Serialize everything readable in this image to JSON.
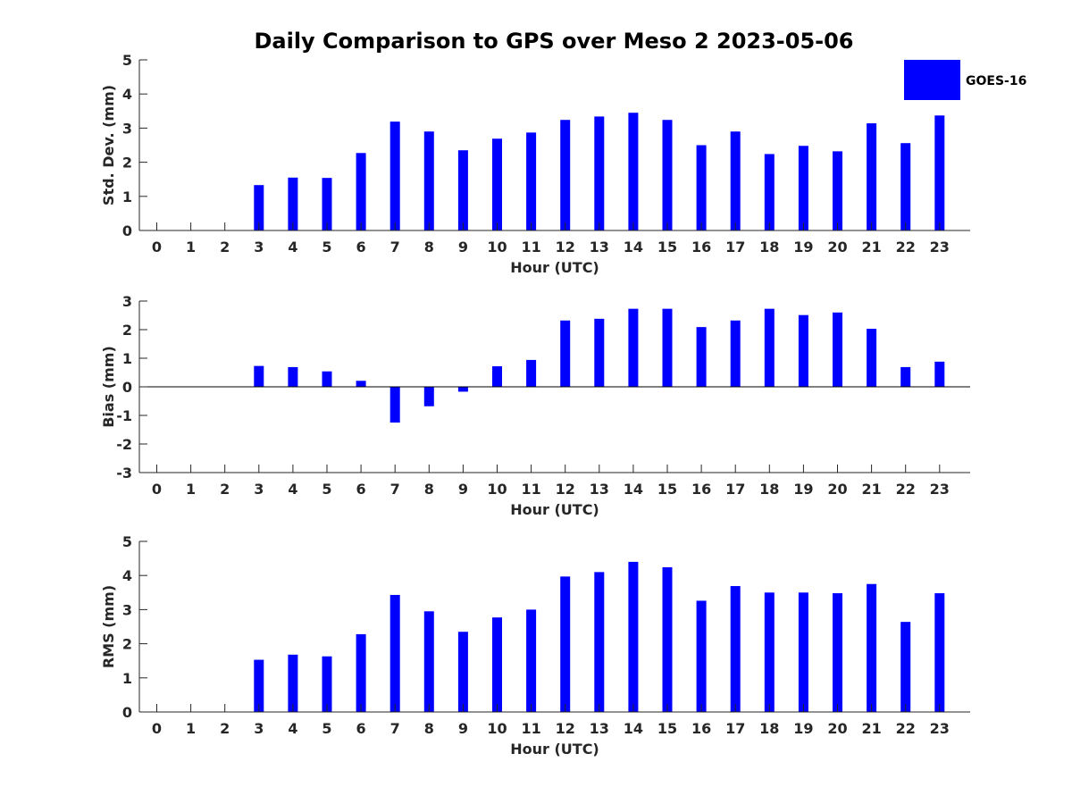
{
  "title": "Daily Comparison to GPS over Meso 2 2023-05-06",
  "bar_color": "#0000ff",
  "legend": {
    "label": "GOES-16",
    "placement": "top-right"
  },
  "chart_data": [
    {
      "type": "bar",
      "title": "Daily Comparison to GPS over Meso 2 2023-05-06",
      "xlabel": "Hour (UTC)",
      "ylabel": "Std. Dev. (mm)",
      "ylim": [
        0,
        5
      ],
      "yticks": [
        0,
        1,
        2,
        3,
        4,
        5
      ],
      "categories": [
        "0",
        "1",
        "2",
        "3",
        "4",
        "5",
        "6",
        "7",
        "8",
        "9",
        "10",
        "11",
        "12",
        "13",
        "14",
        "15",
        "16",
        "17",
        "18",
        "19",
        "20",
        "21",
        "22",
        "23"
      ],
      "series": [
        {
          "name": "GOES-16",
          "values": [
            null,
            null,
            null,
            1.33,
            1.55,
            1.54,
            2.27,
            3.19,
            2.9,
            2.35,
            2.69,
            2.87,
            3.24,
            3.34,
            3.45,
            3.24,
            2.5,
            2.9,
            2.24,
            2.48,
            2.32,
            3.14,
            2.56,
            3.37
          ]
        }
      ]
    },
    {
      "type": "bar",
      "xlabel": "Hour (UTC)",
      "ylabel": "Bias (mm)",
      "ylim": [
        -3,
        3
      ],
      "yticks": [
        -3,
        -2,
        -1,
        0,
        1,
        2,
        3
      ],
      "zero_line": true,
      "categories": [
        "0",
        "1",
        "2",
        "3",
        "4",
        "5",
        "6",
        "7",
        "8",
        "9",
        "10",
        "11",
        "12",
        "13",
        "14",
        "15",
        "16",
        "17",
        "18",
        "19",
        "20",
        "21",
        "22",
        "23"
      ],
      "series": [
        {
          "name": "GOES-16",
          "values": [
            null,
            null,
            null,
            0.73,
            0.69,
            0.54,
            0.21,
            -1.25,
            -0.68,
            -0.17,
            0.72,
            0.94,
            2.32,
            2.38,
            2.73,
            2.73,
            2.09,
            2.32,
            2.73,
            2.51,
            2.6,
            2.03,
            0.69,
            0.88
          ]
        }
      ]
    },
    {
      "type": "bar",
      "xlabel": "Hour (UTC)",
      "ylabel": "RMS (mm)",
      "ylim": [
        0,
        5
      ],
      "yticks": [
        0,
        1,
        2,
        3,
        4,
        5
      ],
      "categories": [
        "0",
        "1",
        "2",
        "3",
        "4",
        "5",
        "6",
        "7",
        "8",
        "9",
        "10",
        "11",
        "12",
        "13",
        "14",
        "15",
        "16",
        "17",
        "18",
        "19",
        "20",
        "21",
        "22",
        "23"
      ],
      "series": [
        {
          "name": "GOES-16",
          "values": [
            null,
            null,
            null,
            1.53,
            1.68,
            1.63,
            2.28,
            3.43,
            2.95,
            2.35,
            2.77,
            3.0,
            3.97,
            4.1,
            4.4,
            4.24,
            3.26,
            3.69,
            3.5,
            3.5,
            3.48,
            3.75,
            2.64,
            3.48
          ]
        }
      ]
    }
  ]
}
